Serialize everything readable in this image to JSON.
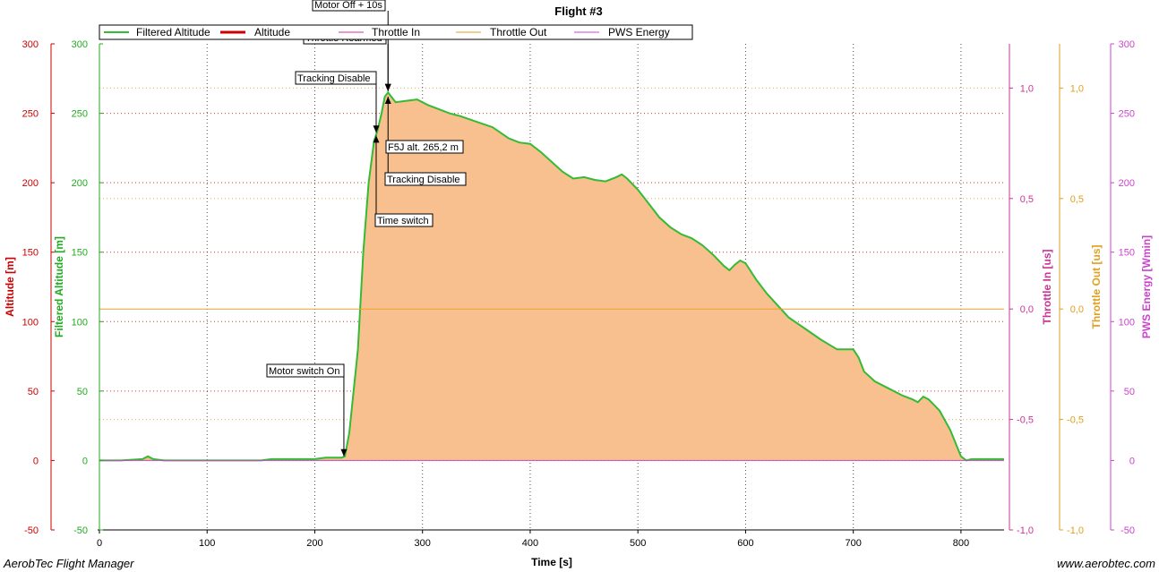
{
  "footer": {
    "left": "AerobTec Flight Manager",
    "right": "www.aerobtec.com"
  },
  "colors": {
    "altitude_axis": "#cc0000",
    "filtered_axis": "#22aa22",
    "filtered_line": "#33bb33",
    "area_fill": "#f8c08e",
    "throttle_in": "#cc3399",
    "throttle_out": "#e0a020",
    "pws_energy": "#cc44cc",
    "grid": "#cc0000",
    "throttle_out_line": "#f0a030"
  },
  "chart_data": {
    "type": "area",
    "title": "Flight #3",
    "xlabel": "Time [s]",
    "xlim": [
      0,
      840
    ],
    "x_ticks": [
      0,
      100,
      200,
      300,
      400,
      500,
      600,
      700,
      800
    ],
    "grid": true,
    "legend": {
      "placement": "top-left",
      "entries": [
        "Filtered Altitude",
        "Altitude",
        "Throttle In",
        "Throttle Out",
        "PWS Energy"
      ]
    },
    "y_axes": [
      {
        "id": "altitude",
        "label": "Altitude [m]",
        "side": "left",
        "ylim": [
          -50,
          300
        ],
        "ticks": [
          "-50",
          "0",
          "50",
          "100",
          "150",
          "200",
          "250",
          "300"
        ]
      },
      {
        "id": "filtered",
        "label": "Filtered Altitude [m]",
        "side": "left",
        "ylim": [
          -50,
          300
        ],
        "ticks": [
          "-50",
          "0",
          "50",
          "100",
          "150",
          "200",
          "250",
          "300"
        ]
      },
      {
        "id": "throttle_in",
        "label": "Throttle In [us]",
        "side": "right",
        "ylim": [
          -1.0,
          1.2
        ],
        "ticks": [
          "-1,0",
          "-0,5",
          "0,0",
          "0,5",
          "1,0"
        ]
      },
      {
        "id": "throttle_out",
        "label": "Throttle Out [us]",
        "side": "right",
        "ylim": [
          -1.0,
          1.2
        ],
        "ticks": [
          "-1,0",
          "-0,5",
          "0,0",
          "0,5",
          "1,0"
        ]
      },
      {
        "id": "pws",
        "label": "PWS Energy [Wmin]",
        "side": "right",
        "ylim": [
          -50,
          300
        ],
        "ticks": [
          "-50",
          "0",
          "50",
          "100",
          "150",
          "200",
          "250",
          "300"
        ]
      }
    ],
    "series": [
      {
        "name": "Filtered Altitude",
        "axis": "filtered",
        "x": [
          0,
          20,
          40,
          45,
          50,
          60,
          100,
          150,
          160,
          200,
          210,
          225,
          228,
          232,
          240,
          245,
          250,
          255,
          258,
          262,
          265,
          268,
          275,
          285,
          295,
          305,
          315,
          325,
          335,
          350,
          365,
          380,
          390,
          400,
          410,
          420,
          430,
          440,
          450,
          460,
          470,
          480,
          485,
          490,
          500,
          510,
          520,
          530,
          540,
          550,
          560,
          570,
          580,
          585,
          590,
          595,
          600,
          610,
          620,
          640,
          655,
          670,
          685,
          700,
          705,
          710,
          720,
          730,
          745,
          755,
          760,
          765,
          770,
          780,
          790,
          800,
          805,
          810,
          815,
          825,
          840
        ],
        "y": [
          0,
          0,
          1,
          3,
          1,
          0,
          0,
          0,
          1,
          1,
          2,
          2,
          3,
          20,
          80,
          150,
          200,
          230,
          237,
          250,
          262,
          265,
          258,
          259,
          260,
          256,
          253,
          250,
          248,
          244,
          240,
          232,
          229,
          228,
          222,
          215,
          208,
          203,
          204,
          202,
          201,
          204,
          206,
          203,
          195,
          185,
          175,
          168,
          163,
          160,
          155,
          148,
          140,
          137,
          141,
          144,
          142,
          130,
          120,
          103,
          95,
          87,
          80,
          80,
          74,
          64,
          57,
          53,
          47,
          44,
          42,
          46,
          44,
          36,
          22,
          3,
          0,
          1,
          1,
          1,
          1
        ]
      },
      {
        "name": "Throttle Out",
        "axis": "throttle_out",
        "x": [
          0,
          840
        ],
        "y": [
          0.0,
          0.0
        ]
      },
      {
        "name": "PWS Energy",
        "axis": "pws",
        "x": [
          0,
          840
        ],
        "y": [
          0,
          0
        ]
      }
    ],
    "annotations": [
      {
        "text": "Motor switch On",
        "x": 227,
        "y": 3,
        "arrow": "down"
      },
      {
        "text": "Motor Off + 10s",
        "x": 268,
        "y": 266,
        "arrow": "down"
      },
      {
        "text": "Throttle Rearmed",
        "x": 268,
        "y": 266,
        "arrow": "down"
      },
      {
        "text": "Tracking Disable",
        "x": 257,
        "y": 236,
        "arrow": "down"
      },
      {
        "text": "Time switch",
        "x": 257,
        "y": 234,
        "arrow": "up"
      },
      {
        "text": "Tracking Disable",
        "x": 268,
        "y": 262,
        "arrow": "up"
      },
      {
        "text": "F5J alt. 265,2 m",
        "x": 268,
        "y": 265.2,
        "arrow": "none"
      }
    ]
  }
}
